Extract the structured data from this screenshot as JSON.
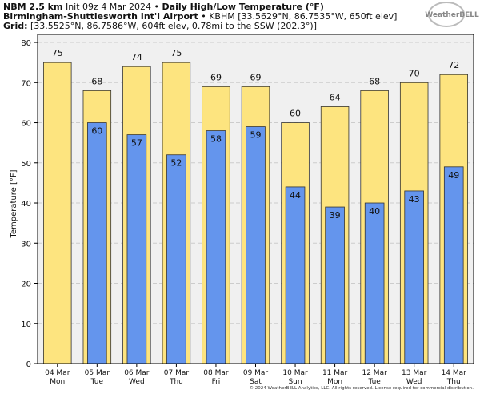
{
  "chart_data": {
    "type": "bar",
    "title_parts": [
      "NBM 2.5 km",
      " Init 09z 4 Mar 2024 • ",
      "Daily High/Low Temperature (°F)"
    ],
    "subtitle_parts": [
      "Birmingham-Shuttlesworth Int'l Airport",
      " • KBHM [33.5629°N, 86.7535°W, 650ft elev]"
    ],
    "grid_parts": [
      "Grid:",
      " [33.5525°N, 86.7586°W, 604ft elev, 0.78mi to the SSW (202.3°)]"
    ],
    "logo": "WeatherBELL",
    "y_label": "Temperature [°F]",
    "footer": "© 2024 WeatherBELL Analytics, LLC. All rights reserved. License required for commercial distribution.",
    "categories": [
      "04 Mar",
      "05 Mar",
      "06 Mar",
      "07 Mar",
      "08 Mar",
      "09 Mar",
      "10 Mar",
      "11 Mar",
      "12 Mar",
      "13 Mar",
      "14 Mar"
    ],
    "weekdays": [
      "Mon",
      "Tue",
      "Wed",
      "Thu",
      "Fri",
      "Sat",
      "Sun",
      "Mon",
      "Tue",
      "Wed",
      "Thu"
    ],
    "series": [
      {
        "color": "#fde47f",
        "values": [
          75,
          68,
          74,
          75,
          69,
          69,
          60,
          64,
          68,
          70,
          72
        ]
      },
      {
        "color": "#6495ed",
        "values": [
          null,
          60,
          57,
          52,
          58,
          59,
          44,
          39,
          40,
          43,
          49
        ]
      }
    ],
    "ylim": [
      0,
      82
    ],
    "yticks": [
      0,
      10,
      20,
      30,
      40,
      50,
      60,
      70,
      80
    ],
    "grid": true
  }
}
